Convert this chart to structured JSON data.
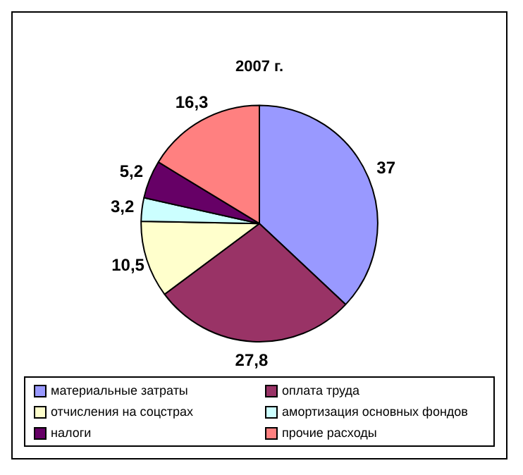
{
  "chart_data": {
    "type": "pie",
    "title": "2007 г.",
    "categories": [
      "материальные  затраты",
      "оплата труда",
      "отчисления  на соцстрах",
      "амортизация  основных фондов",
      "налоги",
      "прочие расходы"
    ],
    "values": [
      37,
      27.8,
      10.5,
      3.2,
      5.2,
      16.3
    ],
    "value_labels": [
      "37",
      "27,8",
      "10,5",
      "3,2",
      "5,2",
      "16,3"
    ],
    "colors": [
      "#9999ff",
      "#993366",
      "#ffffcc",
      "#ccffff",
      "#660066",
      "#ff8080"
    ],
    "legend": "bottom"
  }
}
